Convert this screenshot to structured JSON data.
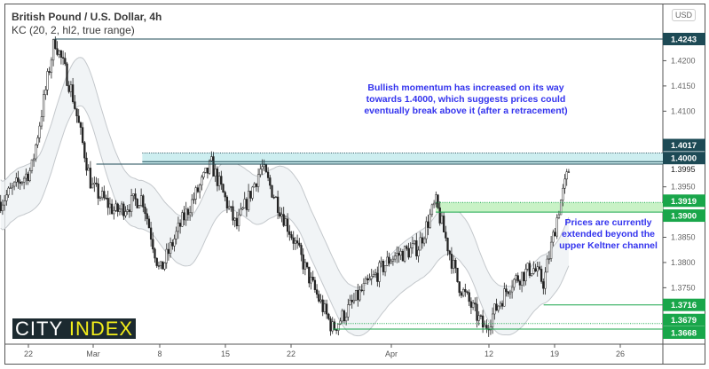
{
  "header": {
    "title": "British Pound / U.S. Dollar, 4h",
    "indicator": "KC (20, 2, hl2, true range)",
    "currency": "USD"
  },
  "logo": {
    "part1": "CITY ",
    "part2": "INDEX"
  },
  "annotations": {
    "momentum_note": [
      "Bullish momentum has increased on its way",
      "towards 1.4000, which suggests prices could",
      "eventually break above it (after a retracement)"
    ],
    "keltner_note": [
      "Prices are currently",
      "extended beyond the",
      "upper Keltner channel"
    ]
  },
  "chart_data": {
    "type": "candlestick",
    "title": "British Pound / U.S. Dollar, 4h",
    "indicator": "Keltner Channel (20, 2, hl2, true range)",
    "x_ticks": [
      {
        "label": "22",
        "date": "2021-02-22"
      },
      {
        "label": "Mar",
        "date": "2021-03-01"
      },
      {
        "label": "8",
        "date": "2021-03-08"
      },
      {
        "label": "15",
        "date": "2021-03-15"
      },
      {
        "label": "22",
        "date": "2021-03-22"
      },
      {
        "label": "Apr",
        "date": "2021-04-01"
      },
      {
        "label": "12",
        "date": "2021-04-12"
      },
      {
        "label": "19",
        "date": "2021-04-19"
      },
      {
        "label": "26",
        "date": "2021-04-26"
      }
    ],
    "y_ticks": [
      "1.4200",
      "1.4150",
      "1.4100",
      "1.3950",
      "1.3850",
      "1.3800",
      "1.3750"
    ],
    "ylim": [
      1.3645,
      1.432
    ],
    "price_path": [
      {
        "date": "2021-02-19T00:00",
        "price": 1.392
      },
      {
        "date": "2021-02-22T08:00",
        "price": 1.3985
      },
      {
        "date": "2021-02-24T20:00",
        "price": 1.4243
      },
      {
        "date": "2021-02-26T16:00",
        "price": 1.414
      },
      {
        "date": "2021-02-28T20:00",
        "price": 1.395
      },
      {
        "date": "2021-03-03T08:00",
        "price": 1.39
      },
      {
        "date": "2021-03-06T04:00",
        "price": 1.393
      },
      {
        "date": "2021-03-08T00:00",
        "price": 1.378
      },
      {
        "date": "2021-03-10T08:00",
        "price": 1.388
      },
      {
        "date": "2021-03-13T12:00",
        "price": 1.3995
      },
      {
        "date": "2021-03-16T04:00",
        "price": 1.387
      },
      {
        "date": "2021-03-18T20:00",
        "price": 1.399
      },
      {
        "date": "2021-03-22T04:00",
        "price": 1.385
      },
      {
        "date": "2021-03-24T00:00",
        "price": 1.376
      },
      {
        "date": "2021-03-26T04:00",
        "price": 1.3668
      },
      {
        "date": "2021-03-29T08:00",
        "price": 1.375
      },
      {
        "date": "2021-04-01T00:00",
        "price": 1.381
      },
      {
        "date": "2021-04-04T00:00",
        "price": 1.383
      },
      {
        "date": "2021-04-06T00:00",
        "price": 1.3919
      },
      {
        "date": "2021-04-08T12:00",
        "price": 1.376
      },
      {
        "date": "2021-04-11T12:00",
        "price": 1.3668
      },
      {
        "date": "2021-04-14T08:00",
        "price": 1.376
      },
      {
        "date": "2021-04-16T16:00",
        "price": 1.379
      },
      {
        "date": "2021-04-17T20:00",
        "price": 1.376
      },
      {
        "date": "2021-04-19T12:00",
        "price": 1.391
      },
      {
        "date": "2021-04-20T16:00",
        "price": 1.3995
      }
    ],
    "levels": [
      {
        "price": 1.4243,
        "label": "1.4243",
        "color": "#1d4a55",
        "style": "solid",
        "from": "2021-02-24T20:00"
      },
      {
        "price": 1.4017,
        "label": "1.4017",
        "color": "#1d4a55",
        "style": "dotted",
        "from": "2021-03-06T04:00"
      },
      {
        "price": 1.4,
        "label": "1.4000",
        "color": "#1d4a55",
        "style": "solid",
        "from": "2021-03-06T04:00"
      },
      {
        "price": 1.3995,
        "label": "1.3995",
        "color": "#1d4a55",
        "style": "solid",
        "from": "2021-03-01T08:00",
        "plain": true
      },
      {
        "price": 1.3919,
        "label": "1.3919",
        "color": "#19a64a",
        "style": "dotted",
        "from": "2021-04-06T00:00"
      },
      {
        "price": 1.39,
        "label": "1.3900",
        "color": "#19a64a",
        "style": "solid",
        "from": "2021-04-06T00:00"
      },
      {
        "price": 1.3716,
        "label": "1.3716",
        "color": "#19a64a",
        "style": "solid",
        "from": "2021-04-17T20:00"
      },
      {
        "price": 1.3679,
        "label": "1.3679",
        "color": "#19a64a",
        "style": "dotted",
        "from": "2021-03-26T04:00"
      },
      {
        "price": 1.3668,
        "label": "1.3668",
        "color": "#19a64a",
        "style": "solid",
        "from": "2021-03-26T04:00"
      }
    ],
    "zones": [
      {
        "from_price": 1.3995,
        "to_price": 1.4017,
        "color": "#cdeef0",
        "from": "2021-03-06T04:00"
      },
      {
        "from_price": 1.39,
        "to_price": 1.3919,
        "color": "#c9f2c6",
        "from": "2021-04-06T00:00"
      }
    ],
    "grid": false
  }
}
